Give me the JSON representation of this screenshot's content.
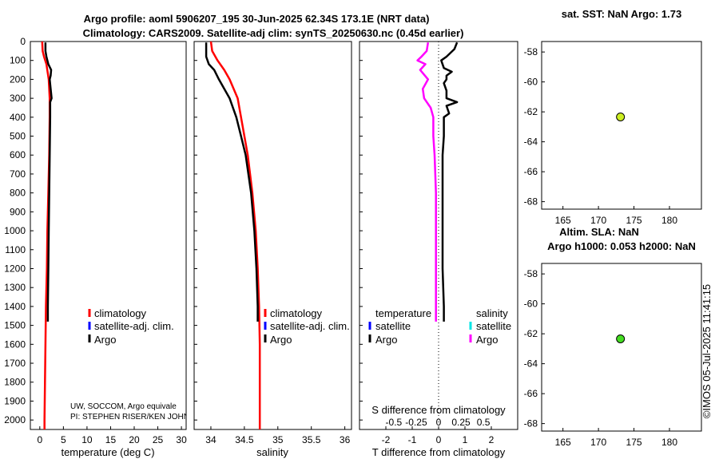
{
  "titles": {
    "main_line1": "Argo profile: aoml 5906207_195 30-Jun-2025 62.34S 173.1E (NRT data)",
    "main_line2": "Climatology: CARS2009. Satellite-adj clim: synTS_20250630.nc (0.45d earlier)",
    "sst": "sat. SST: NaN Argo: 1.73",
    "sla_line1": "Altim. SLA: NaN",
    "sla_line2": "Argo h1000: 0.053 h2000: NaN"
  },
  "stamp": "©IMOS 05-Jul-2025 11:41:15",
  "credits": {
    "line1": "UW, SOCCOM, Argo equivale",
    "line2": "PI: STEPHEN RISER/KEN JOHN"
  },
  "legend_profiles": {
    "climatology": "climatology",
    "satellite": "satellite-adj. clim.",
    "argo": "Argo"
  },
  "legend_diff": {
    "temperature_header": "temperature",
    "salinity_header": "salinity",
    "satellite": "satellite",
    "argo": "Argo"
  },
  "colors": {
    "climatology": "#ff0000",
    "satellite": "#0000ff",
    "argo": "#000000",
    "salinity_diff": "#ff00ff",
    "satellite_sal": "#00e5e5",
    "marker_sst": "#ccee22",
    "marker_sla": "#44dd22"
  },
  "depth_ticks": [
    "0",
    "100",
    "200",
    "300",
    "400",
    "500",
    "600",
    "700",
    "800",
    "900",
    "1000",
    "1100",
    "1200",
    "1300",
    "1400",
    "1500",
    "1600",
    "1700",
    "1800",
    "1900",
    "2000"
  ],
  "chart_data": [
    {
      "type": "line",
      "name": "temperature",
      "xlabel": "temperature (deg C)",
      "ylabel": "depth",
      "xlim": [
        -2,
        31
      ],
      "ylim": [
        2050,
        0
      ],
      "xticks": [
        0,
        5,
        10,
        15,
        20,
        25,
        30
      ],
      "xticklabels": [
        "0",
        "5",
        "10",
        "15",
        "20",
        "25",
        "30"
      ],
      "series": [
        {
          "name": "climatology",
          "depth": [
            0,
            50,
            80,
            120,
            200,
            300,
            400,
            600,
            800,
            1000,
            1200,
            1400,
            1600,
            1800,
            2000,
            2050
          ],
          "values": [
            0.5,
            0.6,
            0.9,
            1.4,
            1.9,
            2.1,
            2.1,
            2.0,
            1.8,
            1.6,
            1.5,
            1.3,
            1.2,
            1.1,
            1.0,
            1.0
          ]
        },
        {
          "name": "Argo",
          "depth": [
            5,
            50,
            80,
            120,
            150,
            180,
            200,
            250,
            300,
            320,
            400,
            600,
            800,
            1000,
            1200,
            1400,
            1480
          ],
          "values": [
            1.2,
            1.2,
            1.4,
            1.8,
            2.4,
            2.3,
            2.1,
            2.3,
            2.5,
            2.2,
            2.2,
            2.1,
            2.0,
            1.9,
            1.8,
            1.7,
            1.7
          ]
        }
      ]
    },
    {
      "type": "line",
      "name": "salinity",
      "xlabel": "salinity",
      "xlim": [
        33.75,
        36.1
      ],
      "ylim": [
        2050,
        0
      ],
      "xticks": [
        34,
        34.5,
        35,
        35.5,
        36
      ],
      "xticklabels": [
        "34",
        "34.5",
        "35",
        "35.5",
        "36"
      ],
      "series": [
        {
          "name": "climatology",
          "depth": [
            0,
            50,
            100,
            150,
            200,
            300,
            400,
            500,
            600,
            800,
            1000,
            1200,
            1400,
            1600,
            1800,
            2000,
            2050
          ],
          "values": [
            34.0,
            34.02,
            34.1,
            34.2,
            34.28,
            34.4,
            34.45,
            34.5,
            34.55,
            34.62,
            34.67,
            34.7,
            34.72,
            34.73,
            34.73,
            34.73,
            34.73
          ]
        },
        {
          "name": "Argo",
          "depth": [
            5,
            80,
            120,
            150,
            200,
            250,
            300,
            400,
            500,
            600,
            800,
            1000,
            1200,
            1400,
            1480
          ],
          "values": [
            33.93,
            33.93,
            33.97,
            34.05,
            34.12,
            34.2,
            34.28,
            34.38,
            34.45,
            34.52,
            34.6,
            34.65,
            34.68,
            34.7,
            34.7
          ]
        }
      ]
    },
    {
      "type": "line",
      "name": "difference",
      "xlabel": "T difference from climatology",
      "top_xlabel": "S difference from climatology",
      "xlim": [
        -3,
        3
      ],
      "ylim": [
        2050,
        0
      ],
      "xticks": [
        -2,
        -1,
        0,
        1,
        2
      ],
      "xticklabels": [
        "-2",
        "-1",
        "0",
        "1",
        "2"
      ],
      "top_ticks": [
        "-0.5",
        "-0.25",
        "0",
        "0.25",
        "0.5"
      ],
      "series": [
        {
          "name": "temperature Argo",
          "depth": [
            5,
            40,
            80,
            100,
            140,
            160,
            180,
            200,
            220,
            260,
            300,
            320,
            340,
            380,
            400,
            450,
            500,
            600,
            700,
            800,
            1000,
            1200,
            1400,
            1480
          ],
          "values": [
            0.7,
            0.6,
            0.3,
            0.1,
            0.2,
            0.5,
            0.3,
            0.3,
            0.2,
            0.3,
            0.3,
            0.7,
            0.3,
            0.4,
            0.2,
            0.2,
            0.2,
            0.15,
            0.15,
            0.15,
            0.15,
            0.15,
            0.2,
            0.2
          ]
        },
        {
          "name": "salinity Argo",
          "depth": [
            5,
            50,
            80,
            100,
            120,
            150,
            200,
            250,
            300,
            350,
            400,
            500,
            600,
            800,
            1000,
            1200,
            1400,
            1480
          ],
          "values": [
            -0.4,
            -0.45,
            -0.65,
            -0.8,
            -0.5,
            -0.7,
            -0.4,
            -0.6,
            -0.55,
            -0.3,
            -0.2,
            -0.2,
            -0.15,
            -0.1,
            -0.1,
            -0.1,
            -0.1,
            -0.1
          ]
        }
      ]
    },
    {
      "type": "scatter",
      "name": "sst-map",
      "xlim": [
        162,
        184.5
      ],
      "ylim": [
        -68.5,
        -57.3
      ],
      "xticks": [
        165,
        170,
        175,
        180
      ],
      "yticks": [
        -58,
        -60,
        -62,
        -64,
        -66,
        -68
      ],
      "points": [
        {
          "x": 173.1,
          "y": -62.34
        }
      ]
    },
    {
      "type": "scatter",
      "name": "sla-map",
      "xlim": [
        162,
        184.5
      ],
      "ylim": [
        -68.5,
        -57.3
      ],
      "xticks": [
        165,
        170,
        175,
        180
      ],
      "yticks": [
        -58,
        -60,
        -62,
        -64,
        -66,
        -68
      ],
      "points": [
        {
          "x": 173.1,
          "y": -62.34
        }
      ]
    }
  ]
}
